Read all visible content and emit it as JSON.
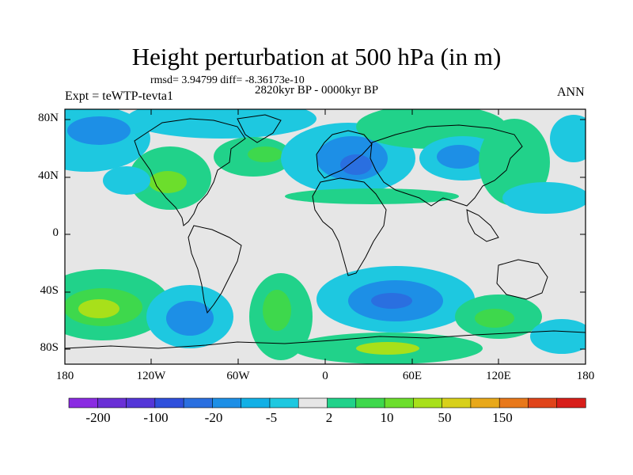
{
  "title": "Height perturbation at 500 hPa (in m)",
  "stats_text": "rmsd= 3.94799 diff= -8.36173e-10",
  "period": "2820kyr BP - 0000kyr BP",
  "experiment": "Expt = teWTP-tevta1",
  "season": "ANN",
  "lat_labels": [
    "80N",
    "40N",
    "0",
    "40S",
    "80S"
  ],
  "lon_labels": [
    "180",
    "120W",
    "60W",
    "0",
    "60E",
    "120E",
    "180"
  ],
  "colorbar": {
    "labels": [
      "-200",
      "-100",
      "-20",
      "-5",
      "2",
      "10",
      "50",
      "150"
    ],
    "colors": [
      "#8a2be2",
      "#6a2fd6",
      "#5436d8",
      "#2f4fdc",
      "#2a6fe0",
      "#1d8fe6",
      "#12b0e6",
      "#1ec8e0",
      "#e6e6e6",
      "#21d28a",
      "#3ed84c",
      "#6cde2c",
      "#a8e01a",
      "#d8d01a",
      "#e8a81a",
      "#e8781a",
      "#e0441a",
      "#d81e1a"
    ]
  },
  "map_colors": {
    "land_outline": "#000000",
    "background": "#e6e6e6"
  }
}
